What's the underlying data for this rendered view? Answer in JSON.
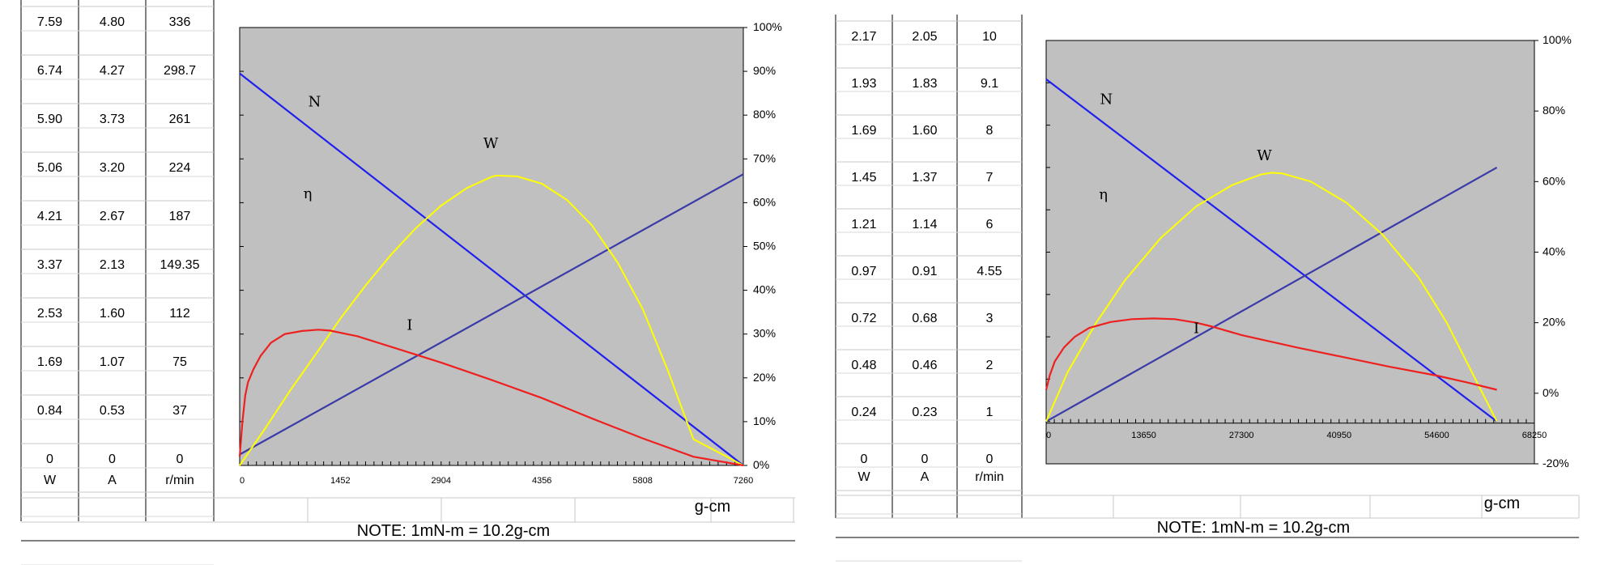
{
  "charts": [
    {
      "table": {
        "rows": [
          [
            "7.59",
            "4.80",
            "336"
          ],
          [
            "6.74",
            "4.27",
            "298.7"
          ],
          [
            "5.90",
            "3.73",
            "261"
          ],
          [
            "5.06",
            "3.20",
            "224"
          ],
          [
            "4.21",
            "2.67",
            "187"
          ],
          [
            "3.37",
            "2.13",
            "149.35"
          ],
          [
            "2.53",
            "1.60",
            "112"
          ],
          [
            "1.69",
            "1.07",
            "75"
          ],
          [
            "0.84",
            "0.53",
            "37"
          ],
          [
            "0",
            "0",
            "0"
          ]
        ],
        "units": [
          "W",
          "A",
          "r/min"
        ]
      },
      "unit_label": "g-cm",
      "note": "NOTE: 1mN-m = 10.2g-cm",
      "chart_data": {
        "type": "line",
        "x_ticks": [
          "0",
          "1452",
          "2904",
          "4356",
          "5808",
          "7260"
        ],
        "x_range": [
          0,
          7260
        ],
        "y_right_ticks": [
          "0%",
          "10%",
          "20%",
          "30%",
          "40%",
          "50%",
          "60%",
          "70%",
          "80%",
          "90%",
          "100%"
        ],
        "y_range": [
          0,
          100
        ],
        "series": [
          {
            "name": "N",
            "color": "#2020ee",
            "points": [
              [
                0,
                89.5
              ],
              [
                7260,
                0
              ]
            ]
          },
          {
            "name": "I",
            "color": "#3a3aa8",
            "points": [
              [
                0,
                2.5
              ],
              [
                7260,
                66.5
              ]
            ]
          },
          {
            "name": "W",
            "color": "#ffff00",
            "points": [
              [
                0,
                0
              ],
              [
                370,
                8.5
              ],
              [
                740,
                17.4
              ],
              [
                1110,
                25.7
              ],
              [
                1450,
                33.5
              ],
              [
                1820,
                41.2
              ],
              [
                2180,
                48.1
              ],
              [
                2540,
                54.2
              ],
              [
                2900,
                59.3
              ],
              [
                3270,
                63.3
              ],
              [
                3630,
                65.9
              ],
              [
                3700,
                66.2
              ],
              [
                4000,
                66.0
              ],
              [
                4360,
                64.3
              ],
              [
                4720,
                60.6
              ],
              [
                5080,
                54.8
              ],
              [
                5450,
                46.3
              ],
              [
                5810,
                35.7
              ],
              [
                6170,
                21.8
              ],
              [
                6540,
                6.0
              ],
              [
                7260,
                0
              ]
            ]
          },
          {
            "name": "η",
            "color": "#ee2020",
            "points": [
              [
                0,
                2
              ],
              [
                40,
                10
              ],
              [
                80,
                16
              ],
              [
                120,
                19
              ],
              [
                200,
                22
              ],
              [
                300,
                25
              ],
              [
                450,
                28
              ],
              [
                650,
                30
              ],
              [
                900,
                30.7
              ],
              [
                1130,
                31.0
              ],
              [
                1300,
                30.8
              ],
              [
                1700,
                29.5
              ],
              [
                2200,
                27.0
              ],
              [
                2904,
                23.5
              ],
              [
                3600,
                19.7
              ],
              [
                4356,
                15.4
              ],
              [
                5100,
                10.6
              ],
              [
                5808,
                6.2
              ],
              [
                6540,
                2.0
              ],
              [
                7260,
                0
              ]
            ]
          }
        ],
        "labels": [
          {
            "text": "N",
            "x": 1080,
            "y": 82
          },
          {
            "text": "W",
            "x": 3620,
            "y": 72.5
          },
          {
            "text": "η",
            "x": 980,
            "y": 61
          },
          {
            "text": "I",
            "x": 2450,
            "y": 31
          }
        ]
      }
    },
    {
      "table": {
        "rows": [
          [
            "2.17",
            "2.05",
            "10"
          ],
          [
            "1.93",
            "1.83",
            "9.1"
          ],
          [
            "1.69",
            "1.60",
            "8"
          ],
          [
            "1.45",
            "1.37",
            "7"
          ],
          [
            "1.21",
            "1.14",
            "6"
          ],
          [
            "0.97",
            "0.91",
            "4.55"
          ],
          [
            "0.72",
            "0.68",
            "3"
          ],
          [
            "0.48",
            "0.46",
            "2"
          ],
          [
            "0.24",
            "0.23",
            "1"
          ],
          [
            "0",
            "0",
            "0"
          ]
        ],
        "units": [
          "W",
          "A",
          "r/min"
        ]
      },
      "unit_label": "g-cm",
      "note": "NOTE: 1mN-m = 10.2g-cm",
      "chart_data": {
        "type": "line",
        "x_ticks": [
          "0",
          "13650",
          "27300",
          "40950",
          "54600",
          "68250"
        ],
        "x_range": [
          0,
          68250
        ],
        "y_right_ticks": [
          "100%",
          "80%",
          "60%",
          "40%",
          "20%",
          "0%",
          "-20%"
        ],
        "y_range": [
          -20,
          100
        ],
        "series": [
          {
            "name": "N",
            "color": "#2020ee",
            "points": [
              [
                0,
                89
              ],
              [
                63000,
                -8
              ]
            ]
          },
          {
            "name": "I",
            "color": "#3a3aa8",
            "points": [
              [
                0,
                -8
              ],
              [
                63000,
                64
              ]
            ]
          },
          {
            "name": "W",
            "color": "#ffff00",
            "points": [
              [
                0,
                -8
              ],
              [
                3000,
                6
              ],
              [
                7000,
                20
              ],
              [
                11000,
                32
              ],
              [
                16000,
                44
              ],
              [
                21000,
                53
              ],
              [
                26000,
                59
              ],
              [
                30000,
                62
              ],
              [
                31500,
                62.5
              ],
              [
                33000,
                62.3
              ],
              [
                37000,
                60
              ],
              [
                42000,
                54
              ],
              [
                47000,
                45
              ],
              [
                52000,
                33
              ],
              [
                56000,
                20
              ],
              [
                59000,
                8
              ],
              [
                61500,
                -2
              ],
              [
                63000,
                -8
              ]
            ]
          },
          {
            "name": "η",
            "color": "#ee2020",
            "points": [
              [
                0,
                1
              ],
              [
                500,
                5
              ],
              [
                1200,
                9
              ],
              [
                2500,
                13
              ],
              [
                4000,
                16
              ],
              [
                6000,
                18.5
              ],
              [
                9000,
                20.2
              ],
              [
                12000,
                21
              ],
              [
                15000,
                21.2
              ],
              [
                18000,
                21
              ],
              [
                21000,
                20
              ],
              [
                23000,
                19
              ],
              [
                27300,
                16.5
              ],
              [
                35000,
                13
              ],
              [
                40950,
                10.5
              ],
              [
                48000,
                7.5
              ],
              [
                54600,
                5
              ],
              [
                59000,
                3
              ],
              [
                63000,
                1
              ]
            ]
          }
        ],
        "labels": [
          {
            "text": "N",
            "x": 8400,
            "y": 82
          },
          {
            "text": "W",
            "x": 30500,
            "y": 66
          },
          {
            "text": "η",
            "x": 8000,
            "y": 55
          },
          {
            "text": "I",
            "x": 21000,
            "y": 17
          }
        ]
      }
    }
  ]
}
